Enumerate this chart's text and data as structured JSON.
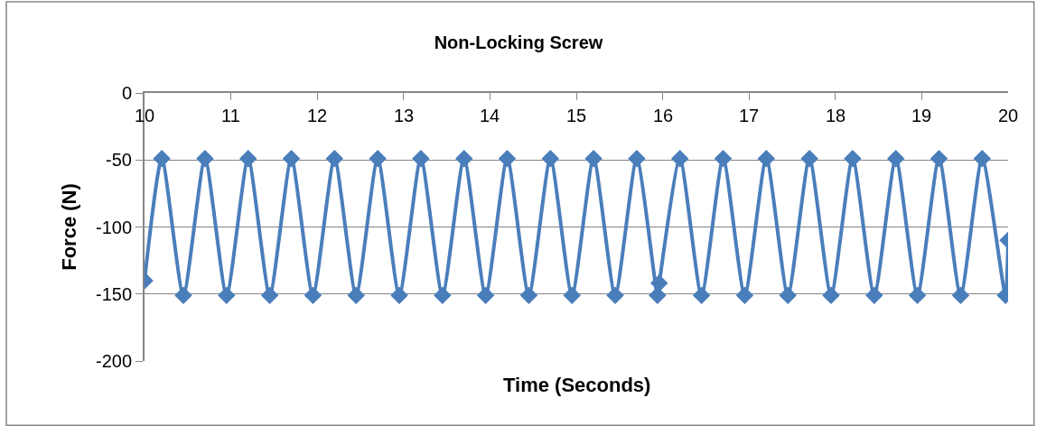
{
  "chart_data": {
    "type": "line",
    "title": "Non-Locking Screw",
    "xlabel": "Time (Seconds)",
    "ylabel": "Force (N)",
    "xlim": [
      10,
      20
    ],
    "xticks": [
      10,
      11,
      12,
      13,
      14,
      15,
      16,
      17,
      18,
      19,
      20
    ],
    "ylim": [
      -200,
      0
    ],
    "yticks": [
      0,
      -50,
      -100,
      -150,
      -200
    ],
    "grid": "y",
    "marker": "diamond",
    "line_style": "solid",
    "x": [
      10,
      10.2,
      10.45,
      10.7,
      10.95,
      11.2,
      11.45,
      11.7,
      11.95,
      12.2,
      12.45,
      12.7,
      12.95,
      13.2,
      13.45,
      13.7,
      13.95,
      14.2,
      14.45,
      14.7,
      14.95,
      15.2,
      15.45,
      15.7,
      15.94,
      15.96,
      16.2,
      16.45,
      16.7,
      16.95,
      17.2,
      17.45,
      17.7,
      17.95,
      18.2,
      18.45,
      18.7,
      18.95,
      19.2,
      19.45,
      19.7,
      19.97,
      20
    ],
    "series": [
      {
        "color": "#4a7ebb",
        "values": [
          -140,
          -49,
          -151,
          -49,
          -151,
          -49,
          -151,
          -49,
          -151,
          -49,
          -151,
          -49,
          -151,
          -49,
          -151,
          -49,
          -151,
          -49,
          -151,
          -49,
          -151,
          -49,
          -151,
          -49,
          -151,
          -142,
          -49,
          -151,
          -49,
          -151,
          -49,
          -151,
          -49,
          -151,
          -49,
          -151,
          -49,
          -151,
          -49,
          -151,
          -49,
          -151,
          -110
        ]
      }
    ]
  }
}
